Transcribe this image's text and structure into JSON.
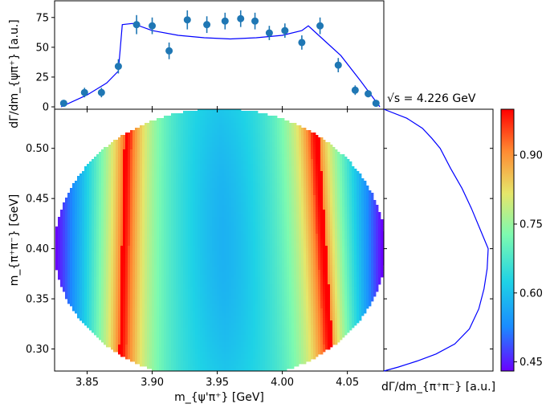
{
  "annotation": "√s = 4.226 GeV",
  "chart_data": [
    {
      "type": "scatter",
      "name": "top-projection",
      "series": [
        {
          "name": "data",
          "x": [
            3.832,
            3.848,
            3.861,
            3.874,
            3.888,
            3.9,
            3.913,
            3.927,
            3.942,
            3.956,
            3.968,
            3.979,
            3.99,
            4.002,
            4.015,
            4.029,
            4.043,
            4.056,
            4.066,
            4.072
          ],
          "y": [
            3,
            12,
            12,
            34,
            69,
            68,
            47,
            73,
            69,
            72,
            74,
            72,
            62,
            64,
            54,
            68,
            35,
            14,
            11,
            3
          ],
          "yerr": [
            2,
            4,
            4,
            6,
            8,
            7,
            7,
            8,
            7,
            7,
            7,
            7,
            6,
            6,
            6,
            7,
            6,
            4,
            3,
            2
          ]
        },
        {
          "name": "model-curve",
          "x": [
            3.83,
            3.85,
            3.865,
            3.874,
            3.877,
            3.885,
            3.9,
            3.92,
            3.94,
            3.96,
            3.98,
            4.0,
            4.015,
            4.02,
            4.03,
            4.045,
            4.06,
            4.075
          ],
          "y": [
            0,
            10,
            20,
            30,
            69,
            70,
            64,
            60,
            58,
            57,
            58,
            60,
            64,
            68,
            58,
            43,
            22,
            0
          ]
        }
      ],
      "xlim": [
        3.825,
        4.078
      ],
      "ylim": [
        -2,
        89
      ],
      "yticks": [
        0,
        25,
        50,
        75
      ],
      "ylabel": "dΓ/dm_{ψπ⁺} [a.u.]"
    },
    {
      "type": "heatmap",
      "name": "dalitz-distribution",
      "xlim": [
        3.825,
        4.078
      ],
      "ylim": [
        0.278,
        0.539
      ],
      "xticks": [
        "3.85",
        "3.90",
        "3.95",
        "4.00",
        "4.05"
      ],
      "yticks": [
        "0.30",
        "0.35",
        "0.40",
        "0.45",
        "0.50"
      ],
      "xlabel": "m_{ψ'π⁺} [GeV]",
      "ylabel": "m_{π⁺π⁻} [GeV]",
      "colormap": "rainbow",
      "color_range": [
        0.43,
        1.0
      ],
      "colorbar_ticks": [
        "0.45",
        "0.60",
        "0.75",
        "0.90"
      ],
      "bands": [
        {
          "name": "left-resonance-band",
          "x_top": 3.881,
          "x_bottom": 3.876
        },
        {
          "name": "right-resonance-band",
          "x_top": 4.024,
          "x_bottom": 4.037
        }
      ]
    },
    {
      "type": "line",
      "name": "right-projection",
      "series": [
        {
          "name": "model-curve",
          "y": [
            0.539,
            0.53,
            0.52,
            0.51,
            0.5,
            0.48,
            0.46,
            0.44,
            0.42,
            0.4,
            0.38,
            0.36,
            0.34,
            0.32,
            0.305,
            0.295,
            0.288,
            0.282,
            0.278
          ],
          "x": [
            0.0,
            0.22,
            0.37,
            0.46,
            0.54,
            0.64,
            0.75,
            0.84,
            0.92,
            1.0,
            0.99,
            0.96,
            0.91,
            0.82,
            0.68,
            0.5,
            0.32,
            0.14,
            0.0
          ]
        }
      ],
      "xlabel": "dΓ/dm_{π⁺π⁻} [a.u.]",
      "ylim": [
        0.278,
        0.539
      ]
    }
  ],
  "colors": {
    "markers": "#1f77b4",
    "curve": "#0000ff",
    "axes": "#000000"
  }
}
